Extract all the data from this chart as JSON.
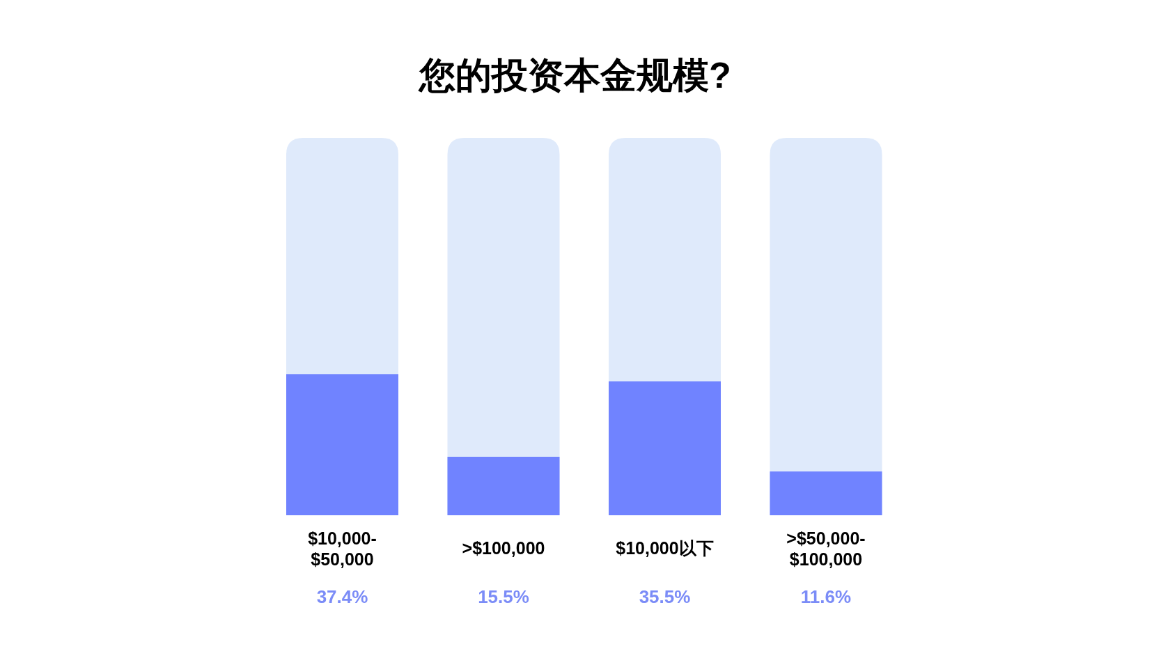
{
  "chart_data": {
    "type": "bar",
    "title": "您的投资本金规模?",
    "categories": [
      "$10,000-$50,000",
      ">$100,000",
      "$10,000以下",
      ">$50,000-$100,000"
    ],
    "values": [
      37.4,
      15.5,
      35.5,
      11.6
    ],
    "value_labels": [
      "37.4%",
      "15.5%",
      "35.5%",
      "11.6%"
    ],
    "color": "#7083ff",
    "ylim": [
      0,
      100
    ]
  }
}
